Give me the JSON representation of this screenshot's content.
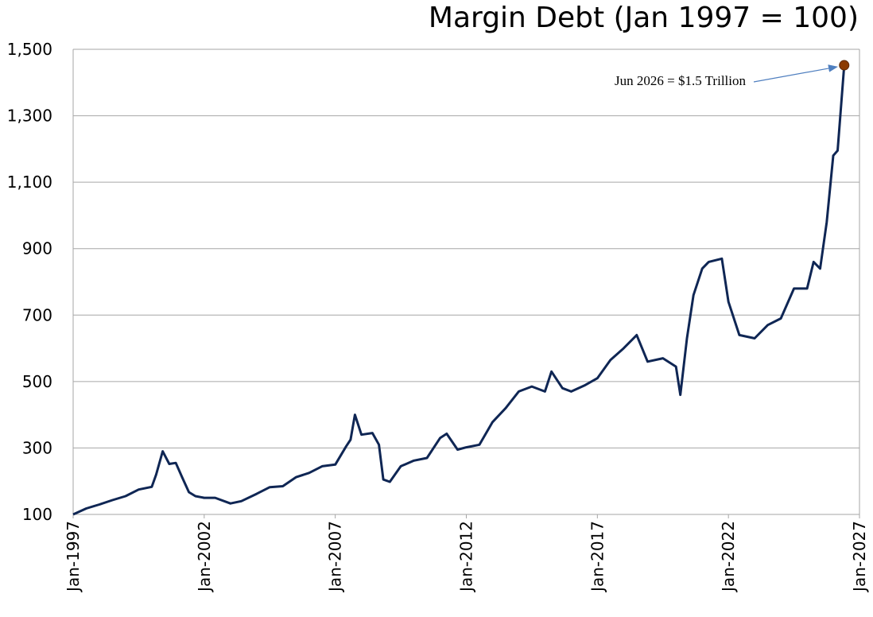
{
  "chart_data": {
    "type": "line",
    "title": "Margin Debt (Jan 1997 = 100)",
    "xlabel": "",
    "ylabel": "",
    "ylim": [
      100,
      1500
    ],
    "yticks": [
      100,
      300,
      500,
      700,
      900,
      1100,
      1300,
      1500
    ],
    "ytick_labels": [
      "100",
      "300",
      "500",
      "700",
      "900",
      "1,100",
      "1,300",
      "1,500"
    ],
    "xlim": [
      "Jan-1997",
      "Jan-2027"
    ],
    "xticks": [
      "Jan-1997",
      "Jan-2002",
      "Jan-2007",
      "Jan-2012",
      "Jan-2017",
      "Jan-2022",
      "Jan-2027"
    ],
    "grid": "horizontal",
    "line_color": "#0f2654",
    "marker_color": "#8b3a00",
    "annotation": {
      "text": "Jun 2026 = $1.5 Trillion",
      "point": {
        "x": "Jun-2026",
        "y": 1452
      }
    },
    "series": [
      {
        "x": [
          "Jan-1997",
          "Jul-1997",
          "Jan-1998",
          "Jul-1998",
          "Jan-1999",
          "Jul-1999",
          "Jan-2000",
          "Mar-2000",
          "Jun-2000",
          "Sep-2000",
          "Dec-2000",
          "Mar-2001",
          "Jun-2001",
          "Sep-2001",
          "Jan-2002",
          "Jun-2002",
          "Jan-2003",
          "Jun-2003",
          "Jan-2004",
          "Jul-2004",
          "Jan-2005",
          "Jul-2005",
          "Jan-2006",
          "Jul-2006",
          "Jan-2007",
          "Jun-2007",
          "Aug-2007",
          "Oct-2007",
          "Jan-2008",
          "Jun-2008",
          "Sep-2008",
          "Nov-2008",
          "Feb-2009",
          "Jul-2009",
          "Jan-2010",
          "Jul-2010",
          "Jan-2011",
          "Apr-2011",
          "Sep-2011",
          "Jan-2012",
          "Jul-2012",
          "Jan-2013",
          "Jul-2013",
          "Jan-2014",
          "Jul-2014",
          "Jan-2015",
          "Apr-2015",
          "Sep-2015",
          "Jan-2016",
          "Jul-2016",
          "Jan-2017",
          "Jul-2017",
          "Jan-2018",
          "Jul-2018",
          "Dec-2018",
          "Jul-2019",
          "Jan-2020",
          "Mar-2020",
          "Jun-2020",
          "Sep-2020",
          "Jan-2021",
          "Apr-2021",
          "Oct-2021",
          "Jan-2022",
          "Jun-2022",
          "Jan-2023",
          "Jul-2023",
          "Jan-2024",
          "Jul-2024",
          "Jan-2025",
          "Apr-2025",
          "Jul-2025",
          "Oct-2025",
          "Jan-2026",
          "Mar-2026",
          "Jun-2026"
        ],
        "values": [
          100,
          118,
          130,
          143,
          155,
          175,
          183,
          220,
          290,
          252,
          255,
          210,
          167,
          155,
          150,
          150,
          133,
          140,
          162,
          182,
          185,
          212,
          225,
          245,
          250,
          305,
          325,
          400,
          340,
          345,
          310,
          205,
          198,
          245,
          262,
          270,
          330,
          343,
          295,
          302,
          310,
          378,
          420,
          470,
          485,
          470,
          530,
          480,
          470,
          488,
          510,
          565,
          600,
          640,
          560,
          570,
          545,
          460,
          630,
          760,
          840,
          860,
          870,
          740,
          640,
          630,
          670,
          690,
          780,
          780,
          860,
          840,
          980,
          1180,
          1195,
          1452
        ]
      }
    ]
  }
}
